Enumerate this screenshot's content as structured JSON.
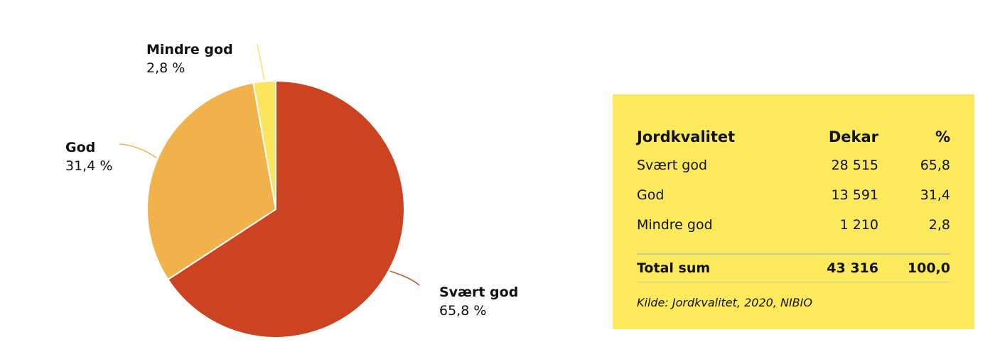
{
  "chart_data": {
    "type": "pie",
    "slices": [
      {
        "name": "Svært god",
        "value": 65.8,
        "label": "65,8 %",
        "color": "#cb4320"
      },
      {
        "name": "God",
        "value": 31.4,
        "label": "31,4 %",
        "color": "#f2b24b"
      },
      {
        "name": "Mindre god",
        "value": 2.8,
        "label": "2,8 %",
        "color": "#fbe55c"
      }
    ],
    "start_angle": "12 o'clock",
    "direction": "clockwise"
  },
  "table": {
    "headers": {
      "name": "Jordkvalitet",
      "dekar": "Dekar",
      "pct": "%"
    },
    "rows": [
      {
        "name": "Svært god",
        "dekar": "28 515",
        "pct": "65,8"
      },
      {
        "name": "God",
        "dekar": "13 591",
        "pct": "31,4"
      },
      {
        "name": "Mindre god",
        "dekar": "1 210",
        "pct": "2,8"
      }
    ],
    "total": {
      "name": "Total sum",
      "dekar": "43 316",
      "pct": "100,0"
    },
    "source": "Kilde: Jordkvalitet, 2020, NIBIO",
    "background": "#fcea5c"
  }
}
